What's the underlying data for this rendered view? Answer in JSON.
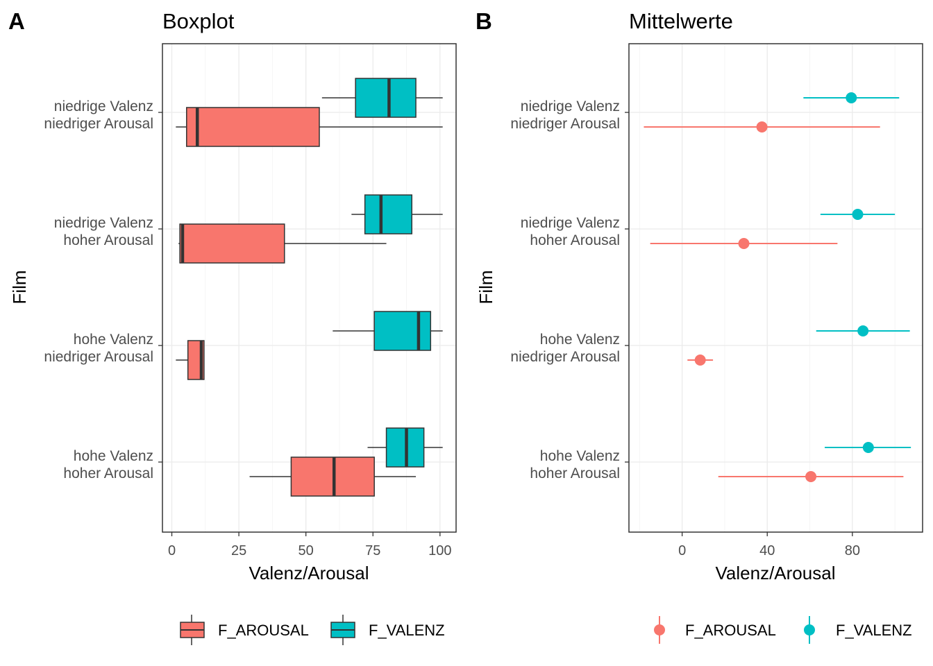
{
  "colors": {
    "F_AROUSAL": "#F8766D",
    "F_VALENZ": "#00BFC4"
  },
  "chart_data": [
    {
      "tag": "A",
      "type": "boxplot",
      "title": "Boxplot",
      "xlabel": "Valenz/Arousal",
      "ylabel": "Film",
      "xlim": [
        -3.5,
        106
      ],
      "xticks": [
        0,
        25,
        50,
        75,
        100
      ],
      "categories": [
        [
          "niedrige Valenz",
          "niedriger Arousal"
        ],
        [
          "niedrige Valenz",
          "hoher Arousal"
        ],
        [
          "hohe Valenz",
          "niedriger Arousal"
        ],
        [
          "hohe Valenz",
          "hoher Arousal"
        ]
      ],
      "series": [
        {
          "name": "F_AROUSAL",
          "boxes": [
            {
              "min": 1.5,
              "q1": 5.5,
              "median": 9.5,
              "q3": 55,
              "max": 101
            },
            {
              "min": 2.5,
              "q1": 3,
              "median": 4,
              "q3": 42,
              "max": 80
            },
            {
              "min": 1.5,
              "q1": 6,
              "median": 11,
              "q3": 12,
              "max": 12
            },
            {
              "min": 29,
              "q1": 44.5,
              "median": 60.5,
              "q3": 75.5,
              "max": 91
            }
          ]
        },
        {
          "name": "F_VALENZ",
          "boxes": [
            {
              "min": 56,
              "q1": 68.5,
              "median": 81,
              "q3": 91,
              "max": 101
            },
            {
              "min": 67,
              "q1": 72,
              "median": 78,
              "q3": 89.5,
              "max": 101
            },
            {
              "min": 60,
              "q1": 75.5,
              "median": 92,
              "q3": 96.5,
              "max": 101
            },
            {
              "min": 73,
              "q1": 80,
              "median": 87.5,
              "q3": 94,
              "max": 101
            }
          ]
        }
      ],
      "legend": {
        "position": "bottom",
        "entries": [
          "F_AROUSAL",
          "F_VALENZ"
        ]
      }
    },
    {
      "tag": "B",
      "type": "pointrange",
      "title": "Mittelwerte",
      "xlabel": "Valenz/Arousal",
      "ylabel": "Film",
      "xlim": [
        -25,
        113
      ],
      "xticks": [
        0,
        40,
        80
      ],
      "categories": [
        [
          "niedrige Valenz",
          "niedriger Arousal"
        ],
        [
          "niedrige Valenz",
          "hoher Arousal"
        ],
        [
          "hohe Valenz",
          "niedriger Arousal"
        ],
        [
          "hohe Valenz",
          "hoher Arousal"
        ]
      ],
      "series": [
        {
          "name": "F_AROUSAL",
          "points": [
            {
              "mean": 37.5,
              "low": -18,
              "high": 93
            },
            {
              "mean": 29,
              "low": -15,
              "high": 73
            },
            {
              "mean": 8.5,
              "low": 2.5,
              "high": 14.5
            },
            {
              "mean": 60.5,
              "low": 17,
              "high": 104
            }
          ]
        },
        {
          "name": "F_VALENZ",
          "points": [
            {
              "mean": 79.5,
              "low": 57,
              "high": 102
            },
            {
              "mean": 82.5,
              "low": 65,
              "high": 100
            },
            {
              "mean": 85,
              "low": 63,
              "high": 107
            },
            {
              "mean": 87.5,
              "low": 67,
              "high": 107.5
            }
          ]
        }
      ],
      "legend": {
        "position": "bottom",
        "entries": [
          "F_AROUSAL",
          "F_VALENZ"
        ]
      }
    }
  ]
}
